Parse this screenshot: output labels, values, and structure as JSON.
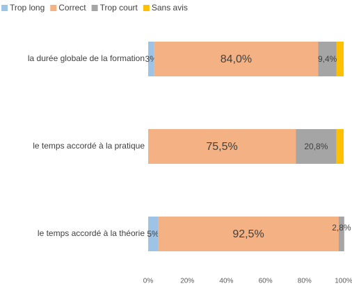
{
  "chart_data": {
    "type": "bar",
    "orientation": "horizontal",
    "stacked": true,
    "categories": [
      "la durée globale de la formation",
      "le temps accordé à la pratique",
      "le temps accordé à la théorie"
    ],
    "series": [
      {
        "name": "Trop long",
        "color": "#9dc3e6",
        "values": [
          3,
          0,
          5
        ],
        "value_labels": [
          "3%",
          null,
          "5%"
        ]
      },
      {
        "name": "Correct",
        "color": "#f4b183",
        "values": [
          84.0,
          75.5,
          92.5
        ],
        "value_labels": [
          "84,0%",
          "75,5%",
          "92,5%"
        ]
      },
      {
        "name": "Trop court",
        "color": "#a5a5a5",
        "values": [
          9.4,
          20.8,
          2.8
        ],
        "value_labels": [
          "9,4%",
          "20,8%",
          "2,8%"
        ]
      },
      {
        "name": "Sans avis",
        "color": "#ffc000",
        "values": [
          3.6,
          3.7,
          0
        ]
      }
    ],
    "xlim": [
      0,
      100
    ],
    "xticks": [
      {
        "value": 0,
        "label": "0%"
      },
      {
        "value": 20,
        "label": "20%"
      },
      {
        "value": 40,
        "label": "40%"
      },
      {
        "value": 60,
        "label": "60%"
      },
      {
        "value": 80,
        "label": "80%"
      },
      {
        "value": 100,
        "label": "100%"
      }
    ],
    "legend": "top-left"
  }
}
